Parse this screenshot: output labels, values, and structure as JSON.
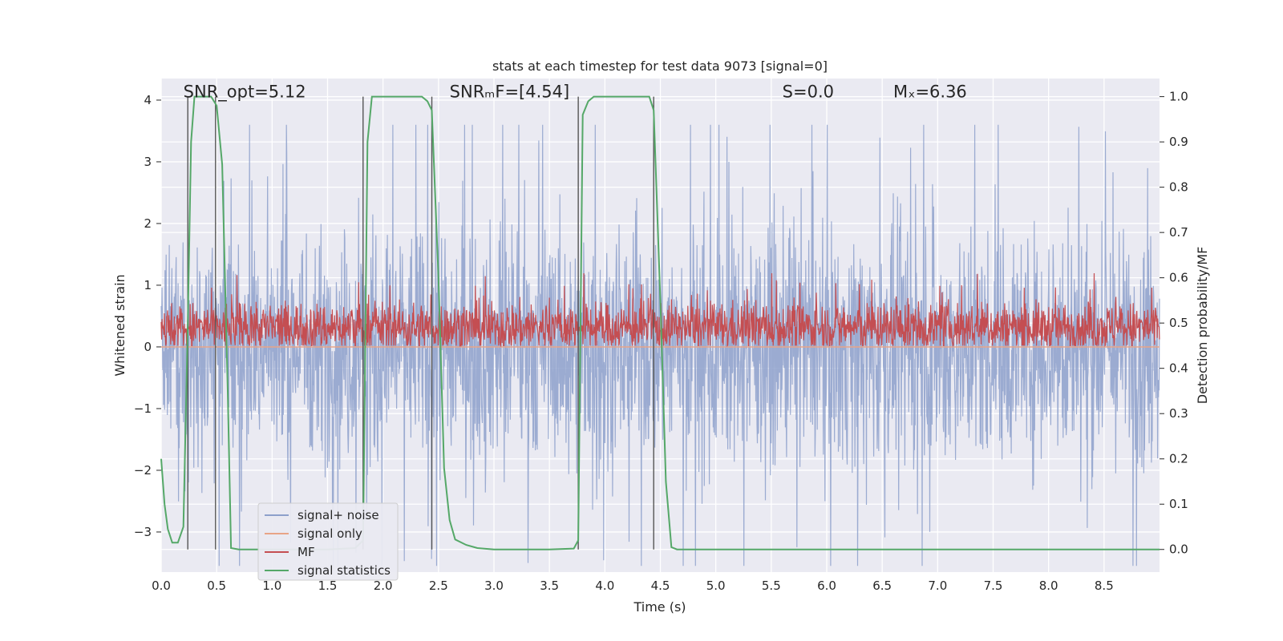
{
  "chart_data": {
    "type": "line",
    "title": "stats at each timestep for test data 9073 [signal=0]",
    "xlabel": "Time (s)",
    "ylabel": "Whitened strain",
    "y2label": "Detection probability/MF",
    "xlim": [
      0.0,
      9.0
    ],
    "ylim": [
      -3.65,
      4.35
    ],
    "y2lim": [
      -0.05,
      1.04
    ],
    "xticks": [
      "0.0",
      "0.5",
      "1.0",
      "1.5",
      "2.0",
      "2.5",
      "3.0",
      "3.5",
      "4.0",
      "4.5",
      "5.0",
      "5.5",
      "6.0",
      "6.5",
      "7.0",
      "7.5",
      "8.0",
      "8.5"
    ],
    "yticks": [
      "4",
      "3",
      "2",
      "1",
      "0",
      "−1",
      "−2",
      "−3"
    ],
    "y2ticks": [
      "1.0",
      "0.9",
      "0.8",
      "0.7",
      "0.6",
      "0.5",
      "0.4",
      "0.3",
      "0.2",
      "0.1",
      "0.0"
    ],
    "grid": true,
    "legend_position": "lower-left",
    "annotations": [
      {
        "text": "SNR_opt=5.12",
        "x": 0.2,
        "y": 4.1
      },
      {
        "text": "SNRₘF=[4.54]",
        "x": 2.6,
        "y": 4.1
      },
      {
        "text": "S=0.0",
        "x": 5.6,
        "y": 4.1
      },
      {
        "text": "Mₓ=6.36",
        "x": 6.6,
        "y": 4.1
      }
    ],
    "vlines": [
      0.24,
      0.49,
      1.82,
      2.44,
      3.76,
      4.44
    ],
    "series": [
      {
        "name": "signal+ noise",
        "axis": "left",
        "color": "#8da0cb",
        "noise_amplitude": 2.4
      },
      {
        "name": "signal only",
        "axis": "left",
        "color": "#e8a487",
        "values_constant": 0.0
      },
      {
        "name": "MF",
        "axis": "right",
        "color": "#c44e52",
        "baseline": 0.49,
        "spread": 0.06
      },
      {
        "name": "signal statistics",
        "axis": "right",
        "color": "#55a868",
        "x": [
          0.0,
          0.03,
          0.06,
          0.1,
          0.15,
          0.2,
          0.24,
          0.27,
          0.3,
          0.35,
          0.45,
          0.5,
          0.55,
          0.6,
          0.63,
          0.7,
          0.8,
          1.0,
          1.5,
          1.75,
          1.82,
          1.86,
          1.9,
          2.0,
          2.2,
          2.35,
          2.4,
          2.44,
          2.5,
          2.55,
          2.6,
          2.65,
          2.75,
          2.85,
          3.0,
          3.5,
          3.72,
          3.76,
          3.8,
          3.85,
          3.9,
          4.0,
          4.2,
          4.4,
          4.44,
          4.5,
          4.55,
          4.6,
          4.65,
          5.0,
          6.0,
          7.0,
          8.0,
          9.0
        ],
        "y": [
          0.2,
          0.1,
          0.045,
          0.015,
          0.015,
          0.05,
          0.5,
          0.9,
          1.0,
          1.0,
          1.0,
          0.98,
          0.85,
          0.35,
          0.003,
          0.0,
          0.0,
          0.0,
          0.0,
          0.003,
          0.02,
          0.9,
          1.0,
          1.0,
          1.0,
          1.0,
          0.99,
          0.97,
          0.6,
          0.18,
          0.065,
          0.022,
          0.01,
          0.003,
          0.0,
          0.0,
          0.002,
          0.02,
          0.96,
          0.99,
          1.0,
          1.0,
          1.0,
          1.0,
          0.97,
          0.55,
          0.15,
          0.005,
          0.0,
          0.0,
          0.0,
          0.0,
          0.0,
          0.0
        ]
      }
    ]
  }
}
